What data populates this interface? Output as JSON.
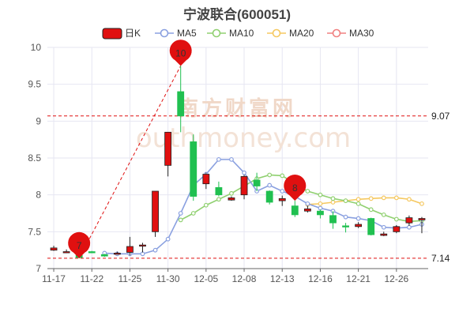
{
  "chart_data": {
    "title": "宁波联合(600051)",
    "type": "candlestick",
    "colors": {
      "up": "#e01010",
      "down": "#20c050",
      "ma5": "#8aa0e0",
      "ma10": "#90d070",
      "ma20": "#f5c860",
      "ma30": "#f08080",
      "grid": "#e6e6f2",
      "ref_line": "#e01010"
    },
    "legend": [
      {
        "key": "kline",
        "label": "日K"
      },
      {
        "key": "ma5",
        "label": "MA5"
      },
      {
        "key": "ma10",
        "label": "MA10"
      },
      {
        "key": "ma20",
        "label": "MA20"
      },
      {
        "key": "ma30",
        "label": "MA30"
      }
    ],
    "ylim": [
      7,
      10
    ],
    "yticks": [
      7,
      7.5,
      8,
      8.5,
      9,
      9.5,
      10
    ],
    "xtick_labels": [
      "11-17",
      "11-22",
      "11-25",
      "11-30",
      "12-05",
      "12-08",
      "12-13",
      "12-16",
      "12-21",
      "12-26"
    ],
    "xtick_indices": [
      0,
      3,
      6,
      9,
      12,
      15,
      18,
      21,
      24,
      27
    ],
    "candles": [
      {
        "o": 7.25,
        "c": 7.28,
        "h": 7.31,
        "l": 7.24
      },
      {
        "o": 7.22,
        "c": 7.23,
        "h": 7.26,
        "l": 7.21
      },
      {
        "o": 7.18,
        "c": 7.15,
        "h": 7.21,
        "l": 7.14
      },
      {
        "o": 7.23,
        "c": 7.22,
        "h": 7.24,
        "l": 7.21
      },
      {
        "o": 7.19,
        "c": 7.17,
        "h": 7.2,
        "l": 7.16
      },
      {
        "o": 7.2,
        "c": 7.21,
        "h": 7.23,
        "l": 7.19
      },
      {
        "o": 7.22,
        "c": 7.3,
        "h": 7.43,
        "l": 7.18
      },
      {
        "o": 7.31,
        "c": 7.32,
        "h": 7.35,
        "l": 7.22
      },
      {
        "o": 7.5,
        "c": 8.05,
        "h": 8.05,
        "l": 7.43
      },
      {
        "o": 8.4,
        "c": 8.85,
        "h": 8.85,
        "l": 8.25
      },
      {
        "o": 9.4,
        "c": 9.07,
        "h": 9.75,
        "l": 8.85
      },
      {
        "o": 8.72,
        "c": 7.98,
        "h": 8.82,
        "l": 7.92
      },
      {
        "o": 8.15,
        "c": 8.28,
        "h": 8.3,
        "l": 8.08
      },
      {
        "o": 8.1,
        "c": 8.0,
        "h": 8.18,
        "l": 7.98
      },
      {
        "o": 7.93,
        "c": 7.96,
        "h": 7.98,
        "l": 7.92
      },
      {
        "o": 8.0,
        "c": 8.25,
        "h": 8.27,
        "l": 7.94
      },
      {
        "o": 8.2,
        "c": 8.12,
        "h": 8.3,
        "l": 8.05
      },
      {
        "o": 8.05,
        "c": 7.9,
        "h": 8.06,
        "l": 7.87
      },
      {
        "o": 7.92,
        "c": 7.95,
        "h": 7.99,
        "l": 7.85
      },
      {
        "o": 7.85,
        "c": 7.73,
        "h": 7.92,
        "l": 7.7
      },
      {
        "o": 7.78,
        "c": 7.81,
        "h": 7.85,
        "l": 7.76
      },
      {
        "o": 7.78,
        "c": 7.73,
        "h": 7.8,
        "l": 7.68
      },
      {
        "o": 7.72,
        "c": 7.62,
        "h": 7.78,
        "l": 7.54
      },
      {
        "o": 7.58,
        "c": 7.57,
        "h": 7.62,
        "l": 7.49
      },
      {
        "o": 7.57,
        "c": 7.6,
        "h": 7.63,
        "l": 7.55
      },
      {
        "o": 7.68,
        "c": 7.46,
        "h": 7.69,
        "l": 7.45
      },
      {
        "o": 7.45,
        "c": 7.47,
        "h": 7.5,
        "l": 7.44
      },
      {
        "o": 7.5,
        "c": 7.57,
        "h": 7.59,
        "l": 7.48
      },
      {
        "o": 7.62,
        "c": 7.69,
        "h": 7.72,
        "l": 7.58
      },
      {
        "o": 7.66,
        "c": 7.68,
        "h": 7.7,
        "l": 7.48
      }
    ],
    "ma5": [
      null,
      null,
      null,
      null,
      7.21,
      7.2,
      7.2,
      7.2,
      7.25,
      7.4,
      7.75,
      8.13,
      8.28,
      8.48,
      8.48,
      8.3,
      8.05,
      8.13,
      8.05,
      7.98,
      7.88,
      7.82,
      7.78,
      7.7,
      7.68,
      7.65,
      7.56,
      7.55,
      7.56,
      7.6
    ],
    "ma10": [
      null,
      null,
      null,
      null,
      null,
      null,
      null,
      null,
      null,
      null,
      7.66,
      7.75,
      7.86,
      7.94,
      8.02,
      8.12,
      8.22,
      8.27,
      8.26,
      8.15,
      8.05,
      8.0,
      7.95,
      7.92,
      7.88,
      7.8,
      7.73,
      7.67,
      7.64,
      7.65
    ],
    "ma20": [
      null,
      null,
      null,
      null,
      null,
      null,
      null,
      null,
      null,
      null,
      null,
      null,
      null,
      null,
      null,
      null,
      null,
      null,
      null,
      null,
      7.87,
      7.88,
      7.9,
      7.92,
      7.94,
      7.95,
      7.96,
      7.96,
      7.94,
      7.88
    ],
    "high_marker": {
      "index": 10,
      "value": 9.75,
      "label": "10"
    },
    "low_marker": {
      "index": 2,
      "value": 7.14,
      "label": "7"
    },
    "mid_marker": {
      "index": 19,
      "value": 7.92,
      "label": "8"
    },
    "ref_high": {
      "value": 9.07,
      "label": "9.07"
    },
    "ref_low": {
      "value": 7.14,
      "label": "7.14"
    },
    "watermark": {
      "cn": "南方财富网",
      "en": "outhmoney.com"
    }
  }
}
